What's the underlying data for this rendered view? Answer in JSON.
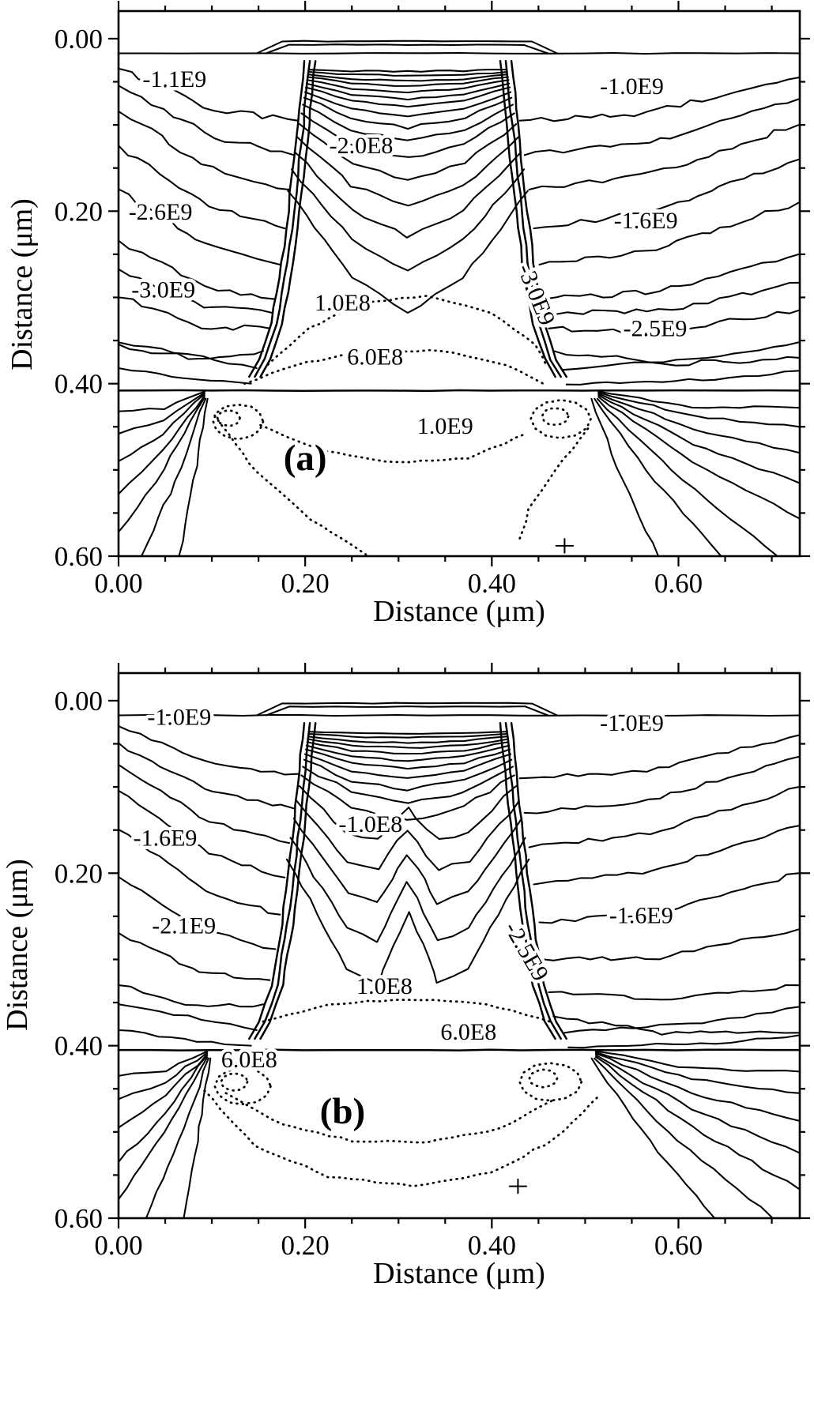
{
  "figure": {
    "panels": [
      {
        "id": "a",
        "letter": "(a)"
      },
      {
        "id": "b",
        "letter": "(b)"
      }
    ],
    "axes": {
      "x": {
        "label": "Distance (μm)",
        "tick_labels": [
          "0.00",
          "0.20",
          "0.40",
          "0.60"
        ],
        "tick_values": [
          0.0,
          0.2,
          0.4,
          0.6
        ],
        "minor_tick_step": 0.05,
        "range_um": [
          0.0,
          0.73
        ]
      },
      "y": {
        "label": "Distance (μm)",
        "tick_labels": [
          "0.00",
          "0.20",
          "0.40",
          "0.60"
        ],
        "tick_values": [
          0.0,
          0.2,
          0.4,
          0.6
        ],
        "minor_tick_step": 0.05,
        "range_um": [
          0.0,
          0.6
        ]
      }
    }
  },
  "chart_data": [
    {
      "type": "contour",
      "panel": "(a)",
      "xlabel": "Distance (μm)",
      "ylabel": "Distance (μm)",
      "xlim": [
        0.0,
        0.73
      ],
      "ylim": [
        0.6,
        0.0
      ],
      "x_tick_labels": [
        "0.00",
        "0.20",
        "0.40",
        "0.60"
      ],
      "y_tick_labels": [
        "0.00",
        "0.20",
        "0.40",
        "0.60"
      ],
      "labeled_levels": [
        "-3.0E9",
        "-2.6E9",
        "-2.5E9",
        "-1.6E9",
        "-1.1E9",
        "-1.0E9",
        "-2.0E8",
        "1.0E8",
        "6.0E8",
        "1.0E9"
      ],
      "letter": {
        "text": "(a)",
        "x": 0.2,
        "y": 0.5
      },
      "annotations": [
        {
          "text": "-1.1E9",
          "x": 0.06,
          "y": 0.056,
          "rot": 0
        },
        {
          "text": "-2.0E8",
          "x": 0.26,
          "y": 0.133,
          "rot": 0
        },
        {
          "text": "-1.0E9",
          "x": 0.55,
          "y": 0.064,
          "rot": 0
        },
        {
          "text": "-2.6E9",
          "x": 0.045,
          "y": 0.21,
          "rot": 0
        },
        {
          "text": "-1.6E9",
          "x": 0.565,
          "y": 0.22,
          "rot": 0
        },
        {
          "text": "-3.0E9",
          "x": 0.048,
          "y": 0.3,
          "rot": 0
        },
        {
          "text": "-3.0E9",
          "x": 0.44,
          "y": 0.3,
          "rot": 68
        },
        {
          "text": "-2.5E9",
          "x": 0.575,
          "y": 0.345,
          "rot": 0
        },
        {
          "text": "1.0E8",
          "x": 0.24,
          "y": 0.315,
          "rot": 0
        },
        {
          "text": "6.0E8",
          "x": 0.275,
          "y": 0.378,
          "rot": 0
        },
        {
          "text": "1.0E9",
          "x": 0.35,
          "y": 0.458,
          "rot": 0
        }
      ]
    },
    {
      "type": "contour",
      "panel": "(b)",
      "xlabel": "Distance (μm)",
      "ylabel": "Distance (μm)",
      "xlim": [
        0.0,
        0.73
      ],
      "ylim": [
        0.6,
        0.0
      ],
      "x_tick_labels": [
        "0.00",
        "0.20",
        "0.40",
        "0.60"
      ],
      "y_tick_labels": [
        "0.00",
        "0.20",
        "0.40",
        "0.60"
      ],
      "labeled_levels": [
        "-2.5E9",
        "-2.1E9",
        "-1.6E9",
        "-1.0E9",
        "-1.0E8",
        "1.0E8",
        "6.0E8"
      ],
      "letter": {
        "text": "(b)",
        "x": 0.24,
        "y": 0.49
      },
      "annotations": [
        {
          "text": "-1.0E9",
          "x": 0.065,
          "y": 0.028,
          "rot": 0
        },
        {
          "text": "-1.0E9",
          "x": 0.55,
          "y": 0.035,
          "rot": 0
        },
        {
          "text": "-1.0E8",
          "x": 0.27,
          "y": 0.152,
          "rot": 0
        },
        {
          "text": "-1.6E9",
          "x": 0.05,
          "y": 0.168,
          "rot": 0
        },
        {
          "text": "-1.6E9",
          "x": 0.56,
          "y": 0.258,
          "rot": 0
        },
        {
          "text": "-2.1E9",
          "x": 0.07,
          "y": 0.27,
          "rot": 0
        },
        {
          "text": "-2.5E9",
          "x": 0.43,
          "y": 0.295,
          "rot": 60
        },
        {
          "text": "1.0E8",
          "x": 0.285,
          "y": 0.34,
          "rot": 0
        },
        {
          "text": "6.0E8",
          "x": 0.14,
          "y": 0.425,
          "rot": 0
        },
        {
          "text": "6.0E8",
          "x": 0.375,
          "y": 0.393,
          "rot": 0
        }
      ]
    }
  ]
}
